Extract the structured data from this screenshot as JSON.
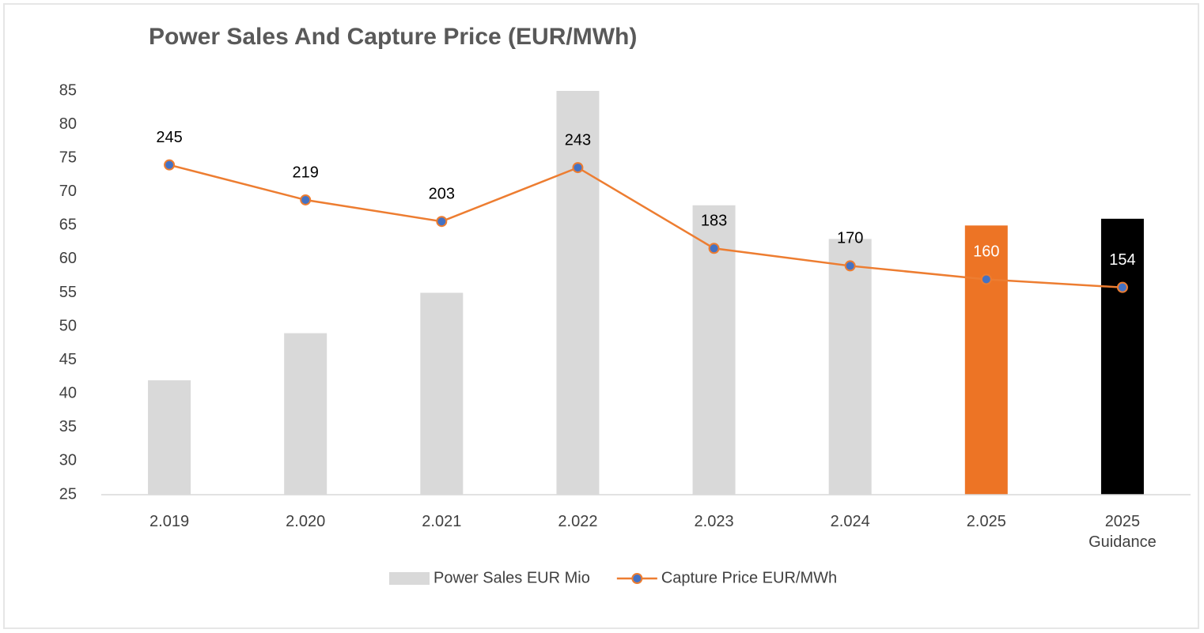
{
  "chart_data": {
    "type": "bar_line",
    "title": "Power Sales And Capture Price (EUR/MWh)",
    "categories": [
      "2.019",
      "2.020",
      "2.021",
      "2.022",
      "2.023",
      "2.024",
      "2.025",
      "2025 Guidance"
    ],
    "series": [
      {
        "name": "Power Sales EUR Mio",
        "type": "bar",
        "color": "#d9d9d9",
        "colors": [
          "#d9d9d9",
          "#d9d9d9",
          "#d9d9d9",
          "#d9d9d9",
          "#d9d9d9",
          "#d9d9d9",
          "#ed7425",
          "#000000"
        ],
        "values": [
          42,
          49,
          55,
          85,
          68,
          63,
          65,
          66
        ]
      },
      {
        "name": "Capture Price EUR/MWh",
        "type": "line",
        "axis": "y2",
        "color": "#ed7d31",
        "marker_color": "#4472c4",
        "values": [
          245,
          219,
          203,
          243,
          183,
          170,
          160,
          154
        ]
      }
    ],
    "ylim": [
      25,
      85
    ],
    "yticks": [
      25,
      30,
      35,
      40,
      45,
      50,
      55,
      60,
      65,
      70,
      75,
      80,
      85
    ],
    "y2lim": [
      0,
      300
    ],
    "legend": "bottom",
    "grid": false
  }
}
